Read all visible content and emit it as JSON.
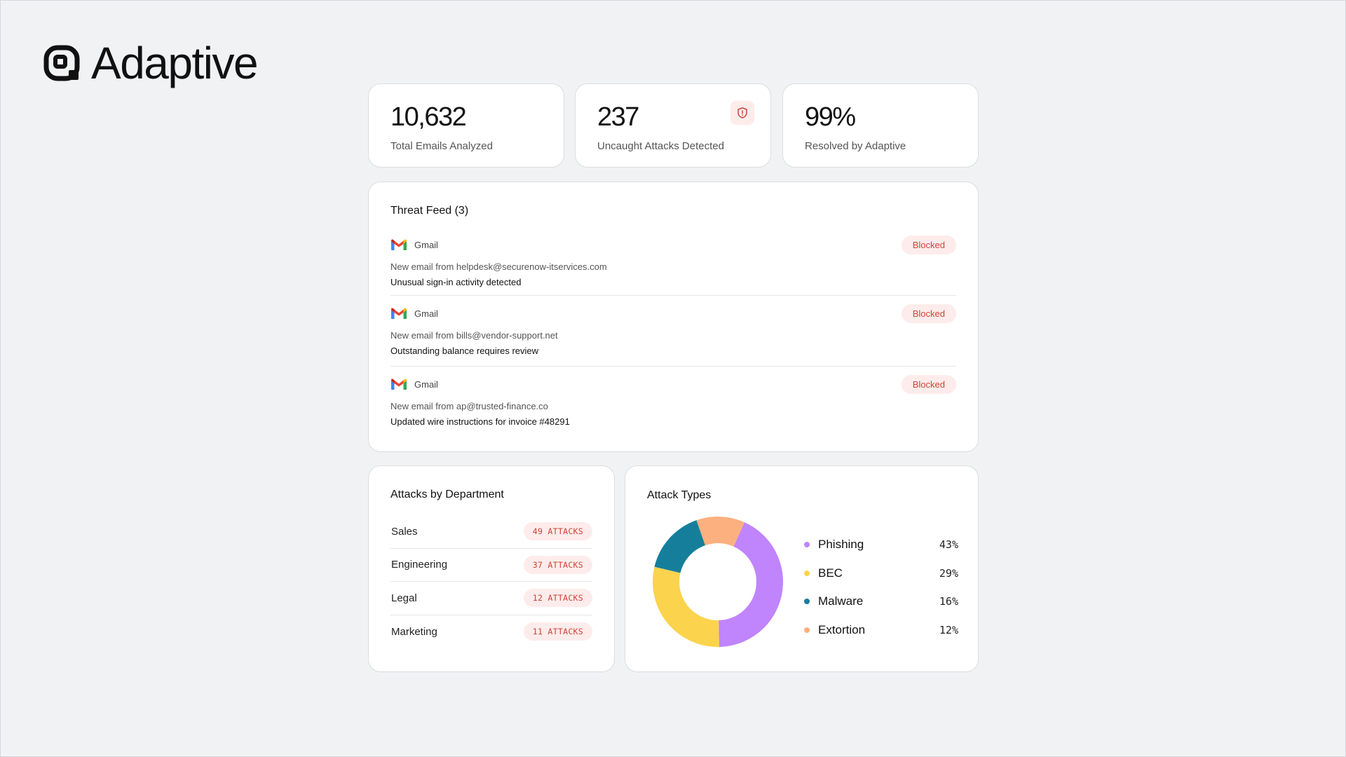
{
  "brand": {
    "name": "Adaptive"
  },
  "stats": [
    {
      "value": "10,632",
      "label": "Total Emails Analyzed"
    },
    {
      "value": "237",
      "label": "Uncaught Attacks Detected"
    },
    {
      "value": "99%",
      "label": "Resolved by Adaptive"
    }
  ],
  "threat_feed": {
    "title": "Threat Feed (3)",
    "items": [
      {
        "source": "Gmail",
        "from": "New email from helpdesk@securenow-itservices.com",
        "subject": "Unusual sign-in activity detected",
        "status": "Blocked"
      },
      {
        "source": "Gmail",
        "from": "New email from bills@vendor-support.net",
        "subject": "Outstanding balance requires review",
        "status": "Blocked"
      },
      {
        "source": "Gmail",
        "from": "New email from ap@trusted-finance.co",
        "subject": "Updated wire instructions for invoice #48291",
        "status": "Blocked"
      }
    ]
  },
  "departments": {
    "title": "Attacks by Department",
    "rows": [
      {
        "name": "Sales",
        "attacks": "49 ATTACKS"
      },
      {
        "name": "Engineering",
        "attacks": "37 ATTACKS"
      },
      {
        "name": "Legal",
        "attacks": "12 ATTACKS"
      },
      {
        "name": "Marketing",
        "attacks": "11 ATTACKS"
      }
    ]
  },
  "attack_types": {
    "title": "Attack Types",
    "items": [
      {
        "label": "Phishing",
        "pct": "43%",
        "value": 43,
        "color": "#c084fc"
      },
      {
        "label": "BEC",
        "pct": "29%",
        "value": 29,
        "color": "#fcd34d"
      },
      {
        "label": "Malware",
        "pct": "16%",
        "value": 16,
        "color": "#157f9b"
      },
      {
        "label": "Extortion",
        "pct": "12%",
        "value": 12,
        "color": "#fdb07f"
      }
    ]
  },
  "colors": {
    "background": "#f1f2f4",
    "danger": "#d0443a",
    "danger_bg": "#fdeceb"
  }
}
